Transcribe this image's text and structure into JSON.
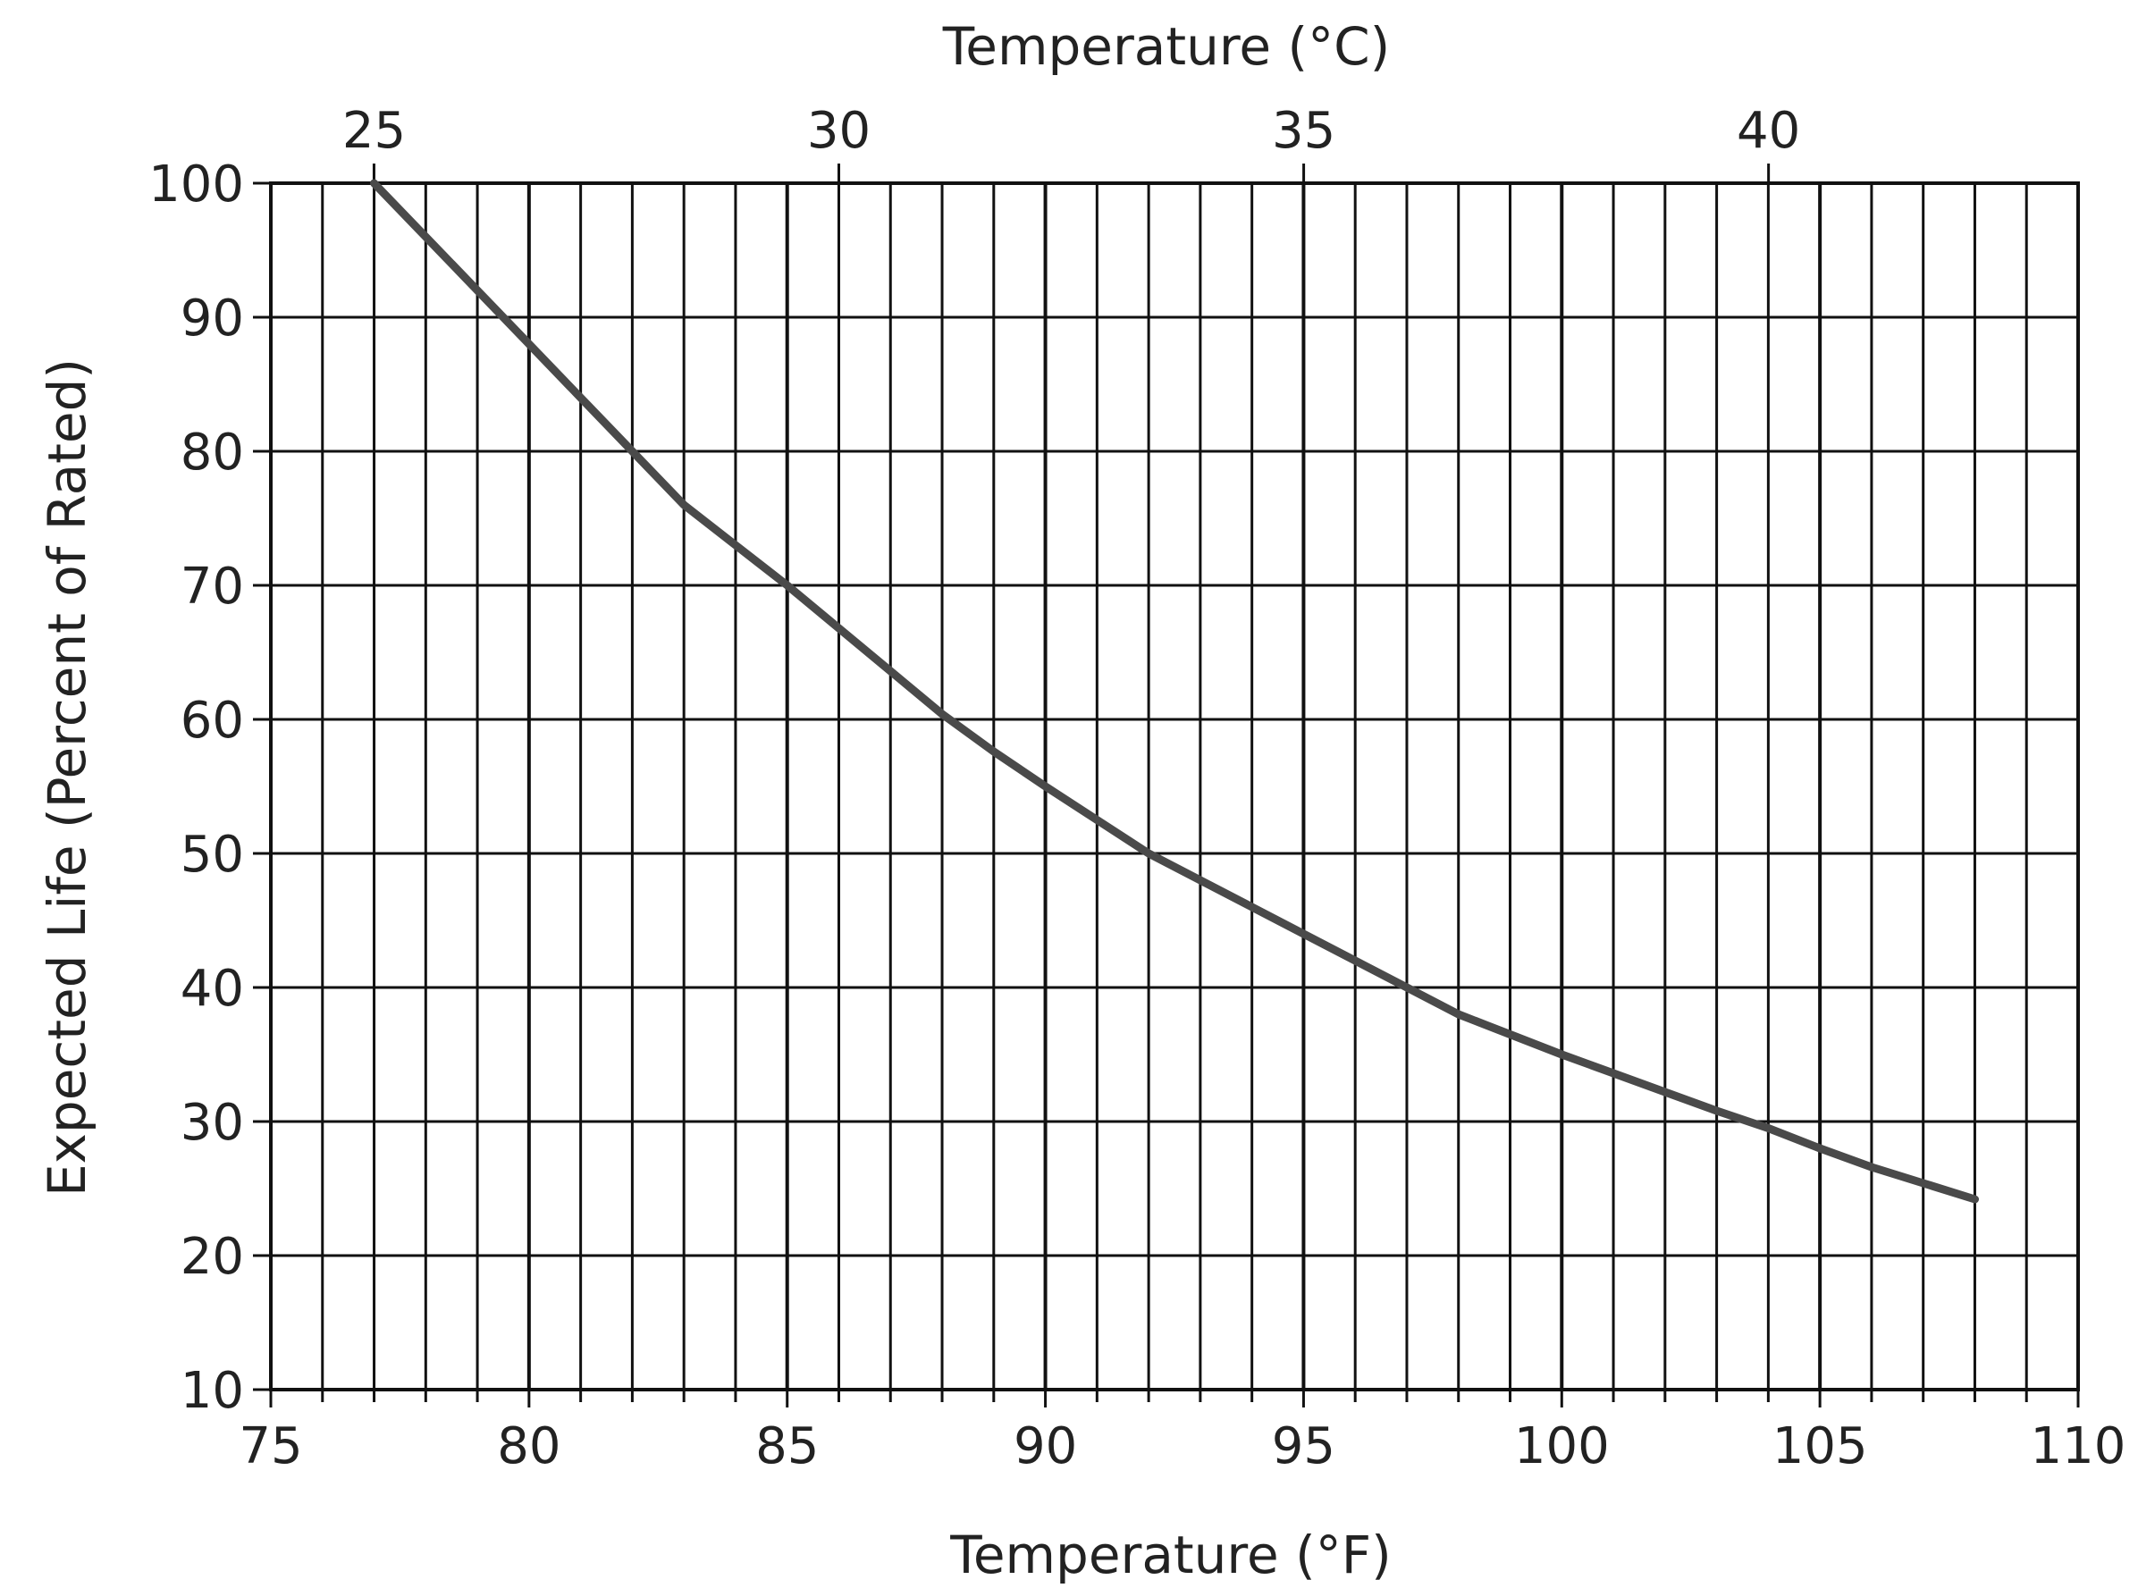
{
  "chart_data": {
    "type": "line",
    "title": "",
    "xlabel": "Temperature (°F)",
    "x2label": "Temperature (°C)",
    "ylabel": "Expected Life (Percent of Rated)",
    "xlim": [
      75,
      110
    ],
    "x2lim": [
      23.89,
      43.33
    ],
    "ylim": [
      10,
      100
    ],
    "x_ticks": [
      75,
      80,
      85,
      90,
      95,
      100,
      105,
      110
    ],
    "x2_ticks": [
      25,
      30,
      35,
      40
    ],
    "y_ticks": [
      10,
      20,
      30,
      40,
      50,
      60,
      70,
      80,
      90,
      100
    ],
    "grid": true,
    "series": [
      {
        "x": [
          77,
          79,
          80,
          81,
          82,
          83,
          84,
          85,
          86,
          87,
          88,
          89,
          90,
          91,
          92,
          93,
          94,
          95,
          96,
          97,
          98,
          99,
          100,
          101,
          102,
          103,
          104,
          105,
          106,
          107,
          108
        ],
        "y": [
          100,
          92,
          88,
          84,
          80,
          76,
          73,
          70,
          66.8,
          63.6,
          60.4,
          57.6,
          55,
          52.5,
          50,
          48,
          46,
          44,
          42,
          40,
          38,
          36.5,
          35,
          33.6,
          32.2,
          30.8,
          29.5,
          28,
          26.6,
          25.4,
          24.2
        ]
      }
    ],
    "colors": {
      "line": "#4a4a4a",
      "grid": "#111111",
      "text": "#222222"
    }
  }
}
